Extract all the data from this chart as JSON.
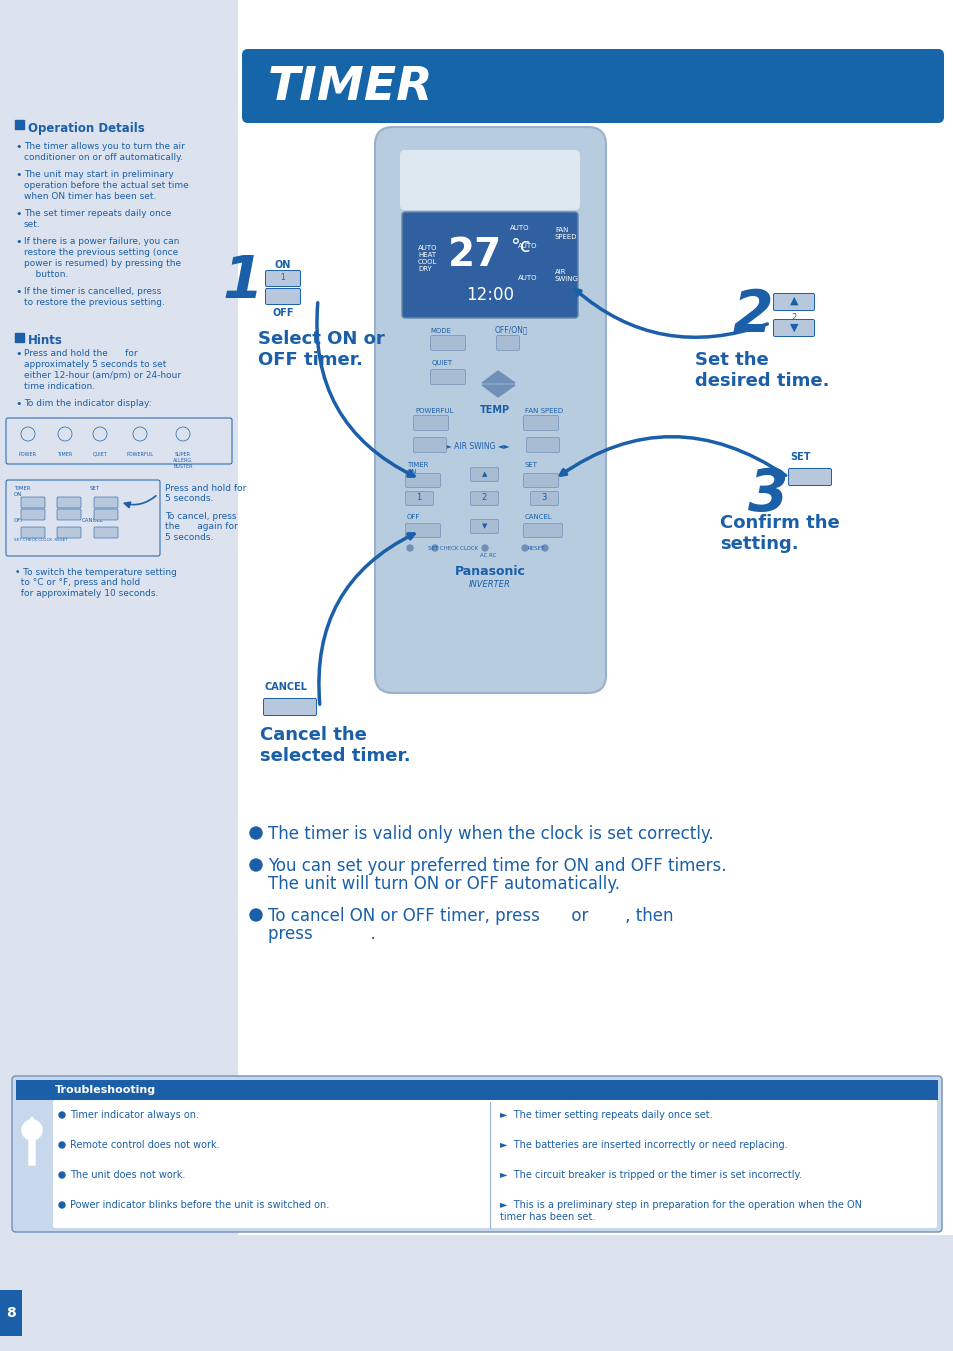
{
  "bg_color": "#dce3ef",
  "white_color": "#ffffff",
  "blue_dark": "#1a5fa8",
  "blue_title": "#1565a8",
  "page_bg": "#dce3ef",
  "title_banner_color": "#1565a8",
  "title_text": "TIMER",
  "op_details_title": "Operation Details",
  "op_details_bullets": [
    "The timer allows you to turn the air\nconditioner on or off automatically.",
    "The unit may start in preliminary\noperation before the actual set time\nwhen ON timer has been set.",
    "The set timer repeats daily once\nset.",
    "If there is a power failure, you can\nrestore the previous setting (once\npower is resumed) by pressing the\n    button.",
    "If the timer is cancelled, press    \nto restore the previous setting."
  ],
  "hints_title": "Hints",
  "hints_bullets": [
    "Press and hold the      for\napproximately 5 seconds to set\neither 12-hour (am/pm) or 24-hour\ntime indication.",
    "To dim the indicator display:"
  ],
  "step1_num": "1",
  "step1_text": "Select ON or\nOFF timer.",
  "step2_num": "2",
  "step2_text": "Set the\ndesired time.",
  "step3_num": "3",
  "step3_label": "SET",
  "step3_text": "Confirm the\nsetting.",
  "cancel_label": "CANCEL",
  "cancel_text": "Cancel the\nselected timer.",
  "bullet1": "The timer is valid only when the clock is set correctly.",
  "bullet2": "You can set your preferred time for ON and OFF timers.\nThe unit will turn ON or OFF automatically.",
  "bullet3": "To cancel ON or OFF timer, press      or       , then\npress           .",
  "troubleshooting_title": "Troubleshooting",
  "trouble_left": [
    "Timer indicator always on.",
    "Remote control does not work.",
    "The unit does not work.",
    "Power indicator blinks before the unit is switched on."
  ],
  "trouble_right": [
    "The timer setting repeats daily once set.",
    "The batteries are inserted incorrectly or need replacing.",
    "The circuit breaker is tripped or the timer is set incorrectly.",
    "This is a preliminary step in preparation for the operation when the ON\ntimer has been set."
  ],
  "page_num": "8",
  "remote_color": "#c8d8ec",
  "remote_screen_color": "#3a6aaa",
  "remote_btn_color": "#b0c4dc"
}
